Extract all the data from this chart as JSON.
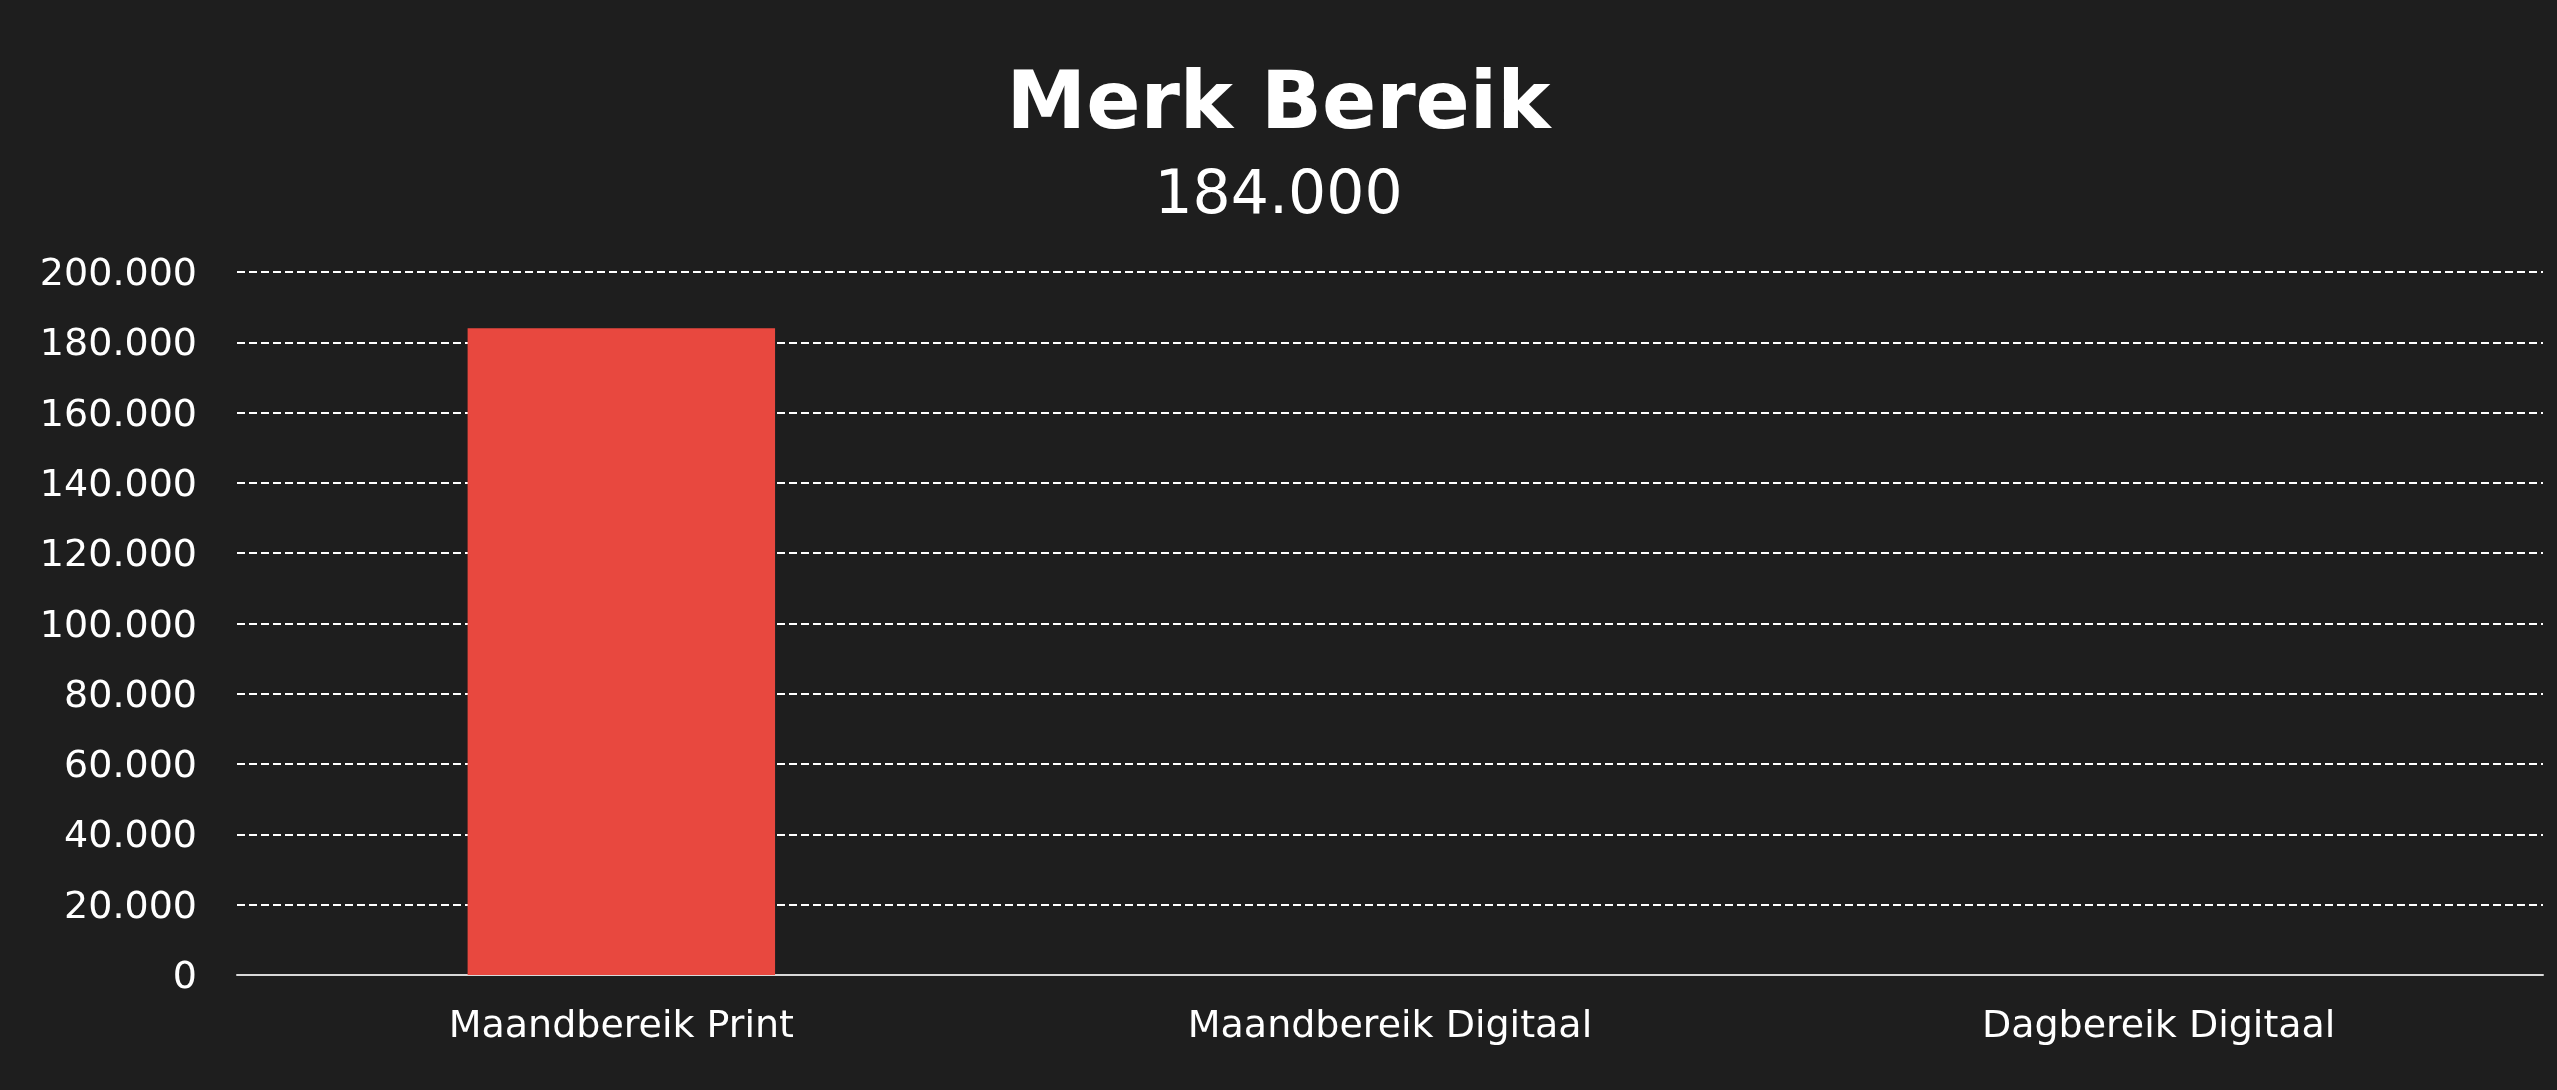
{
  "chart_data": {
    "type": "bar",
    "title": "Merk Bereik",
    "subtitle": "184.000",
    "categories": [
      "Maandbereik Print",
      "Maandbereik Digitaal",
      "Dagbereik Digitaal"
    ],
    "values": [
      184000,
      0,
      0
    ],
    "color": "#e8483f",
    "ylim": [
      0,
      200000
    ],
    "yticks": [
      {
        "value": 0,
        "label": "0"
      },
      {
        "value": 20000,
        "label": "20.000"
      },
      {
        "value": 40000,
        "label": "40.000"
      },
      {
        "value": 60000,
        "label": "60.000"
      },
      {
        "value": 80000,
        "label": "80.000"
      },
      {
        "value": 100000,
        "label": "100.000"
      },
      {
        "value": 120000,
        "label": "120.000"
      },
      {
        "value": 140000,
        "label": "140.000"
      },
      {
        "value": 160000,
        "label": "160.000"
      },
      {
        "value": 180000,
        "label": "180.000"
      },
      {
        "value": 200000,
        "label": "200.000"
      }
    ],
    "grid": "y"
  }
}
